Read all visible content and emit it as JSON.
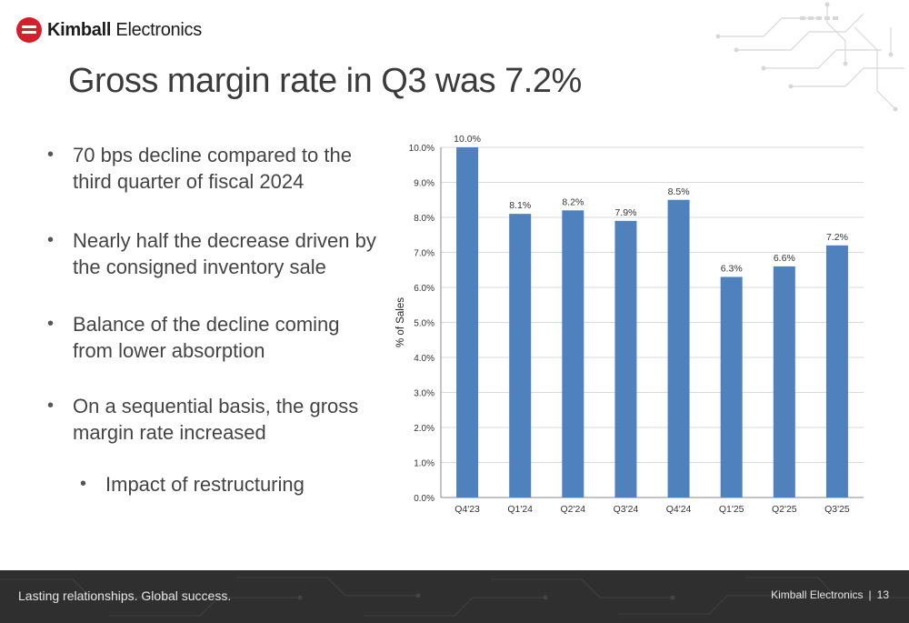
{
  "header": {
    "logo_brand": "Kimball",
    "logo_suffix": "Electronics",
    "title": "Gross margin rate in Q3 was 7.2%"
  },
  "bullets": [
    {
      "text": "70 bps decline compared to the third quarter of fiscal 2024",
      "level": 1
    },
    {
      "text": "Nearly half the decrease driven by the consigned inventory sale",
      "level": 1
    },
    {
      "text": "Balance of the decline coming from lower absorption",
      "level": 1
    },
    {
      "text": "On a sequential basis, the gross margin rate increased",
      "level": 1
    },
    {
      "text": "Impact of restructuring",
      "level": 2
    }
  ],
  "chart_data": {
    "type": "bar",
    "categories": [
      "Q4'23",
      "Q1'24",
      "Q2'24",
      "Q3'24",
      "Q4'24",
      "Q1'25",
      "Q2'25",
      "Q3'25"
    ],
    "values": [
      10.0,
      8.1,
      8.2,
      7.9,
      8.5,
      6.3,
      6.6,
      7.2
    ],
    "data_labels": [
      "10.0%",
      "8.1%",
      "8.2%",
      "7.9%",
      "8.5%",
      "6.3%",
      "6.6%",
      "7.2%"
    ],
    "title": "",
    "xlabel": "",
    "ylabel": "% of Sales",
    "ylim": [
      0,
      10
    ],
    "yticks": [
      "0.0%",
      "1.0%",
      "2.0%",
      "3.0%",
      "4.0%",
      "5.0%",
      "6.0%",
      "7.0%",
      "8.0%",
      "9.0%",
      "10.0%"
    ],
    "grid": true,
    "bar_color": "#4f81bd",
    "legend": "none"
  },
  "footer": {
    "tagline": "Lasting relationships. Global success.",
    "company": "Kimball Electronics",
    "separator": "|",
    "page_number": "13"
  }
}
